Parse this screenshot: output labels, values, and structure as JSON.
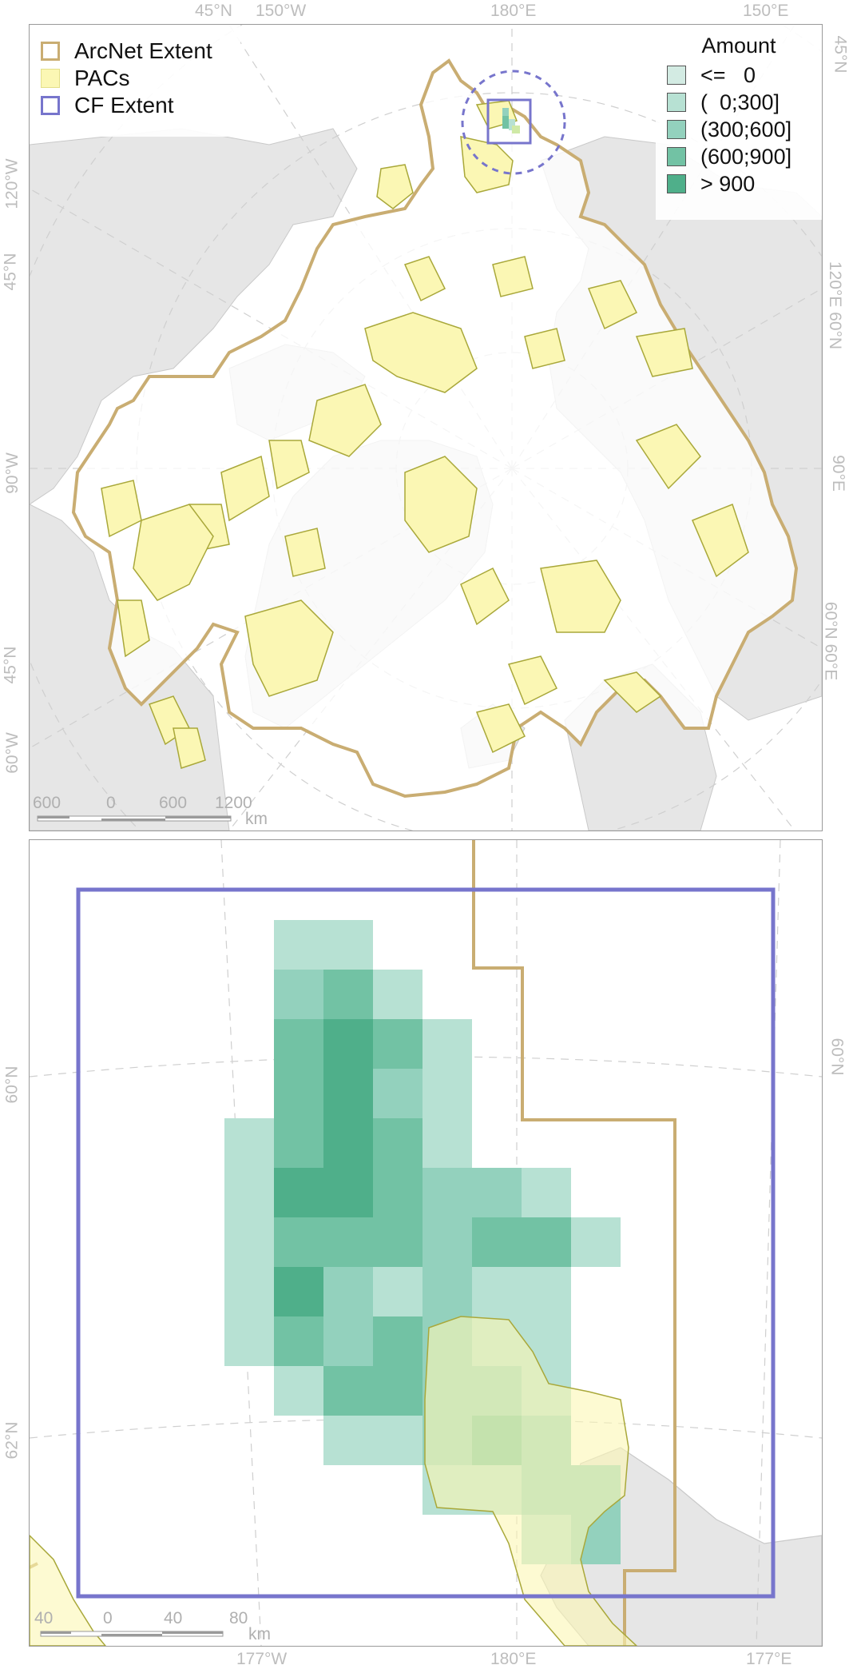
{
  "top_map": {
    "legend_left": {
      "items": [
        {
          "label": "ArcNet Extent",
          "swatch": "outline",
          "color": "#c9ad72"
        },
        {
          "label": "PACs",
          "swatch": "fill",
          "color": "#fbf7b4"
        },
        {
          "label": "CF Extent",
          "swatch": "outline",
          "color": "#7775cc"
        }
      ]
    },
    "legend_right": {
      "title": "Amount",
      "items": [
        {
          "label": "<=   0",
          "color": "#d3ebe3"
        },
        {
          "label": "(  0;300]",
          "color": "#b7e1d3"
        },
        {
          "label": "(300;600]",
          "color": "#93d1bd"
        },
        {
          "label": "(600;900]",
          "color": "#72c2a4"
        },
        {
          "label": "> 900",
          "color": "#4faf8a"
        }
      ]
    },
    "graticule_labels": {
      "top": [
        "45°N",
        "150°W",
        "180°E",
        "150°E"
      ],
      "left": [
        "120°W",
        "45°N",
        "90°W",
        "45°N",
        "60°W"
      ],
      "right": [
        "45°N",
        "120°E 60°N",
        "90°E",
        "60°N 60°E"
      ]
    },
    "scale": {
      "ticks": [
        "600",
        "0",
        "600",
        "1200"
      ],
      "unit": "km"
    }
  },
  "bottom_map": {
    "graticule_labels": {
      "left": [
        "60°N",
        "62°N"
      ],
      "right": [
        "60°N"
      ],
      "bottom": [
        "177°W",
        "180°E",
        "177°E"
      ]
    },
    "scale": {
      "ticks": [
        "40",
        "0",
        "40",
        "80"
      ],
      "unit": "km"
    }
  },
  "colors": {
    "arcnet": "#c9ad72",
    "pac_fill": "#fbf7b4",
    "pac_line": "#a9a83a",
    "cf_extent": "#7775cc",
    "land": "#e6e6e6",
    "graticule": "#cfcfcf"
  }
}
